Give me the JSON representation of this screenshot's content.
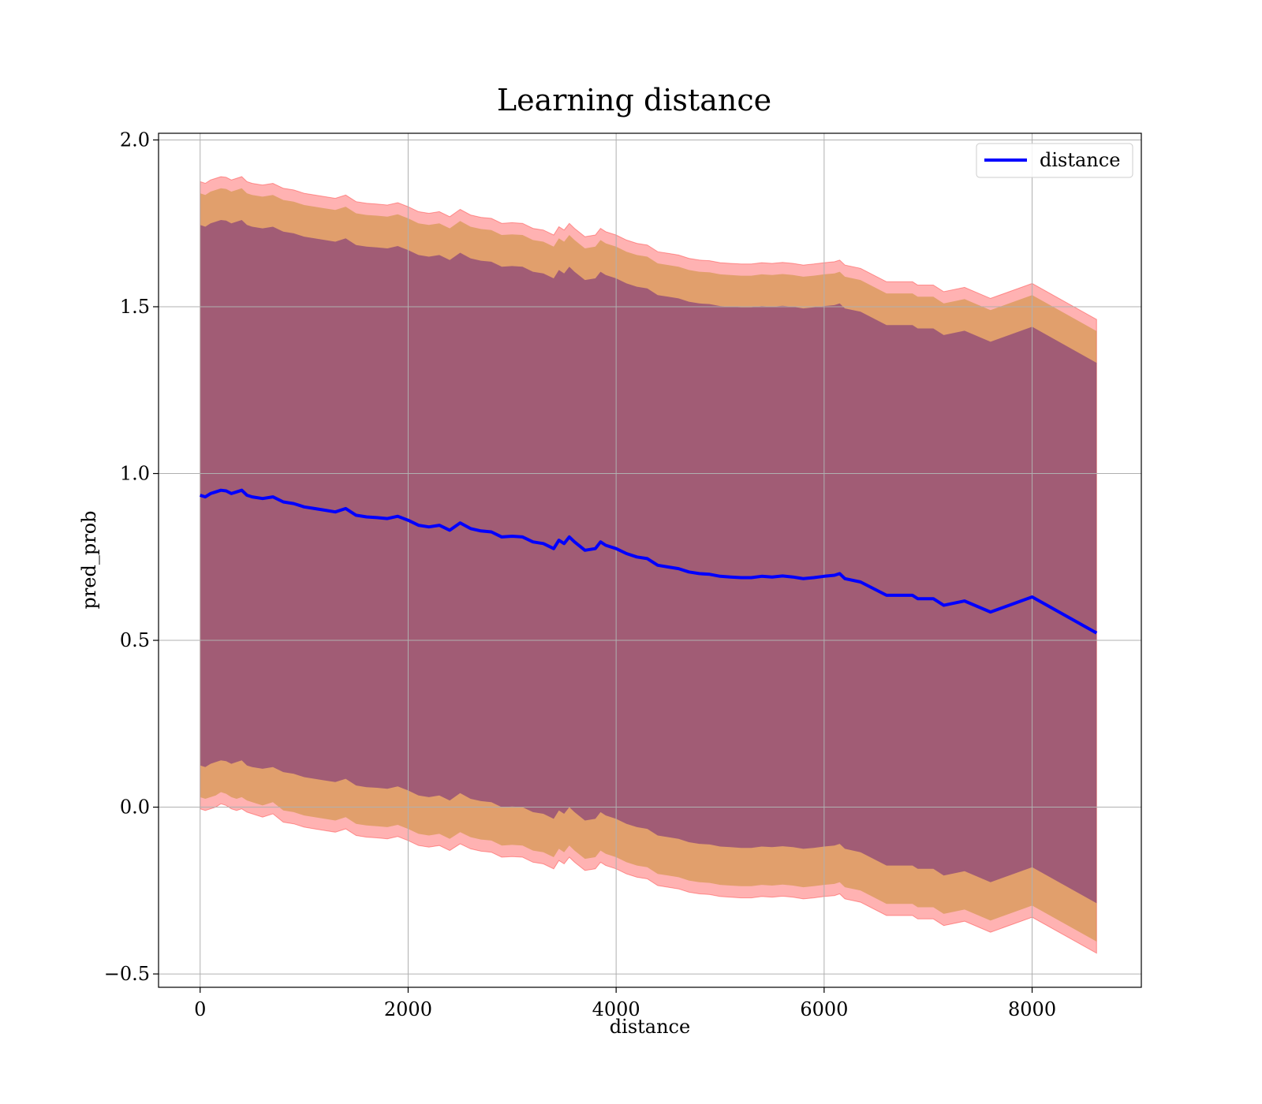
{
  "chart_data": {
    "type": "area",
    "title": "Learning distance",
    "xlabel": "distance",
    "ylabel": "pred_prob",
    "xlim": [
      -400,
      9050
    ],
    "ylim": [
      -0.54,
      2.02
    ],
    "xticks": [
      0,
      2000,
      4000,
      6000,
      8000
    ],
    "yticks": [
      -0.5,
      0.0,
      0.5,
      1.0,
      1.5,
      2.0
    ],
    "xtick_labels": [
      "0",
      "2000",
      "4000",
      "6000",
      "8000"
    ],
    "ytick_labels": [
      "−0.5",
      "0.0",
      "0.5",
      "1.0",
      "1.5",
      "2.0"
    ],
    "grid": true,
    "legend": {
      "position": "top-right",
      "entries": [
        "distance"
      ]
    },
    "colors": {
      "line": "#0000ff",
      "band_outer": "#ff0000",
      "band_middle": "#b8860b",
      "band_inner": "#4b0082",
      "grid": "#b0b0b0"
    },
    "series": [
      {
        "name": "distance",
        "x": [
          0,
          50,
          100,
          150,
          200,
          250,
          300,
          350,
          400,
          450,
          500,
          600,
          700,
          800,
          900,
          1000,
          1100,
          1200,
          1300,
          1400,
          1500,
          1600,
          1700,
          1800,
          1900,
          2000,
          2100,
          2200,
          2300,
          2400,
          2500,
          2600,
          2700,
          2800,
          2900,
          3000,
          3100,
          3200,
          3300,
          3400,
          3450,
          3500,
          3550,
          3600,
          3700,
          3800,
          3850,
          3900,
          4000,
          4100,
          4200,
          4300,
          4400,
          4500,
          4600,
          4700,
          4800,
          4900,
          5000,
          5100,
          5200,
          5300,
          5400,
          5500,
          5600,
          5700,
          5800,
          5900,
          6000,
          6100,
          6150,
          6200,
          6350,
          6600,
          6850,
          6900,
          7050,
          7150,
          7350,
          7600,
          8000,
          8620
        ],
        "values": [
          0.935,
          0.93,
          0.94,
          0.945,
          0.95,
          0.948,
          0.94,
          0.945,
          0.95,
          0.935,
          0.93,
          0.925,
          0.93,
          0.915,
          0.91,
          0.9,
          0.895,
          0.89,
          0.885,
          0.895,
          0.875,
          0.87,
          0.868,
          0.865,
          0.872,
          0.86,
          0.845,
          0.84,
          0.845,
          0.83,
          0.852,
          0.835,
          0.828,
          0.825,
          0.81,
          0.812,
          0.81,
          0.795,
          0.79,
          0.775,
          0.8,
          0.79,
          0.81,
          0.795,
          0.77,
          0.775,
          0.795,
          0.785,
          0.775,
          0.76,
          0.75,
          0.745,
          0.725,
          0.72,
          0.715,
          0.705,
          0.7,
          0.698,
          0.692,
          0.69,
          0.688,
          0.688,
          0.692,
          0.69,
          0.693,
          0.69,
          0.685,
          0.688,
          0.692,
          0.695,
          0.7,
          0.685,
          0.675,
          0.635,
          0.635,
          0.625,
          0.625,
          0.605,
          0.618,
          0.585,
          0.63,
          0.522
        ],
        "lower_outer": [
          -0.005,
          -0.01,
          -0.005,
          0.0,
          0.01,
          0.005,
          -0.005,
          -0.01,
          -0.005,
          -0.015,
          -0.02,
          -0.03,
          -0.02,
          -0.045,
          -0.05,
          -0.06,
          -0.065,
          -0.07,
          -0.075,
          -0.065,
          -0.085,
          -0.09,
          -0.092,
          -0.095,
          -0.088,
          -0.1,
          -0.115,
          -0.12,
          -0.115,
          -0.13,
          -0.11,
          -0.125,
          -0.132,
          -0.135,
          -0.15,
          -0.148,
          -0.15,
          -0.165,
          -0.17,
          -0.185,
          -0.16,
          -0.17,
          -0.15,
          -0.165,
          -0.19,
          -0.185,
          -0.165,
          -0.175,
          -0.185,
          -0.2,
          -0.21,
          -0.215,
          -0.235,
          -0.24,
          -0.245,
          -0.255,
          -0.26,
          -0.262,
          -0.268,
          -0.27,
          -0.272,
          -0.272,
          -0.268,
          -0.27,
          -0.267,
          -0.27,
          -0.275,
          -0.272,
          -0.268,
          -0.265,
          -0.26,
          -0.275,
          -0.285,
          -0.325,
          -0.325,
          -0.335,
          -0.335,
          -0.355,
          -0.342,
          -0.375,
          -0.33,
          -0.438
        ],
        "upper_outer": [
          1.875,
          1.87,
          1.88,
          1.885,
          1.89,
          1.888,
          1.88,
          1.885,
          1.89,
          1.875,
          1.87,
          1.865,
          1.87,
          1.855,
          1.85,
          1.84,
          1.835,
          1.83,
          1.825,
          1.835,
          1.815,
          1.81,
          1.808,
          1.805,
          1.812,
          1.8,
          1.785,
          1.78,
          1.785,
          1.77,
          1.792,
          1.775,
          1.768,
          1.765,
          1.75,
          1.752,
          1.75,
          1.735,
          1.73,
          1.715,
          1.74,
          1.73,
          1.75,
          1.735,
          1.71,
          1.715,
          1.735,
          1.725,
          1.715,
          1.7,
          1.69,
          1.685,
          1.665,
          1.66,
          1.655,
          1.645,
          1.64,
          1.638,
          1.632,
          1.63,
          1.628,
          1.628,
          1.632,
          1.63,
          1.633,
          1.63,
          1.625,
          1.628,
          1.632,
          1.635,
          1.64,
          1.625,
          1.615,
          1.575,
          1.575,
          1.565,
          1.565,
          1.545,
          1.558,
          1.525,
          1.57,
          1.462
        ],
        "lower_middle": [
          0.03,
          0.025,
          0.03,
          0.035,
          0.045,
          0.04,
          0.03,
          0.025,
          0.03,
          0.02,
          0.015,
          0.005,
          0.015,
          -0.01,
          -0.015,
          -0.025,
          -0.03,
          -0.035,
          -0.04,
          -0.03,
          -0.05,
          -0.055,
          -0.057,
          -0.06,
          -0.053,
          -0.065,
          -0.08,
          -0.085,
          -0.08,
          -0.095,
          -0.075,
          -0.09,
          -0.097,
          -0.1,
          -0.115,
          -0.113,
          -0.115,
          -0.13,
          -0.135,
          -0.15,
          -0.125,
          -0.135,
          -0.115,
          -0.13,
          -0.155,
          -0.15,
          -0.13,
          -0.14,
          -0.15,
          -0.165,
          -0.175,
          -0.18,
          -0.2,
          -0.205,
          -0.21,
          -0.22,
          -0.225,
          -0.227,
          -0.233,
          -0.235,
          -0.237,
          -0.237,
          -0.233,
          -0.235,
          -0.232,
          -0.235,
          -0.24,
          -0.237,
          -0.233,
          -0.23,
          -0.225,
          -0.24,
          -0.25,
          -0.29,
          -0.29,
          -0.3,
          -0.3,
          -0.32,
          -0.307,
          -0.34,
          -0.295,
          -0.403
        ],
        "upper_middle": [
          1.84,
          1.835,
          1.845,
          1.85,
          1.855,
          1.853,
          1.845,
          1.85,
          1.855,
          1.84,
          1.835,
          1.83,
          1.835,
          1.82,
          1.815,
          1.805,
          1.8,
          1.795,
          1.79,
          1.8,
          1.78,
          1.775,
          1.773,
          1.77,
          1.777,
          1.765,
          1.75,
          1.745,
          1.75,
          1.735,
          1.757,
          1.74,
          1.733,
          1.73,
          1.715,
          1.717,
          1.715,
          1.7,
          1.695,
          1.68,
          1.705,
          1.695,
          1.715,
          1.7,
          1.675,
          1.68,
          1.7,
          1.69,
          1.68,
          1.665,
          1.655,
          1.65,
          1.63,
          1.625,
          1.62,
          1.61,
          1.605,
          1.603,
          1.597,
          1.595,
          1.593,
          1.593,
          1.597,
          1.595,
          1.598,
          1.595,
          1.59,
          1.593,
          1.597,
          1.6,
          1.605,
          1.59,
          1.58,
          1.54,
          1.54,
          1.53,
          1.53,
          1.51,
          1.523,
          1.49,
          1.535,
          1.427
        ],
        "lower_inner": [
          0.125,
          0.12,
          0.13,
          0.135,
          0.14,
          0.138,
          0.13,
          0.135,
          0.14,
          0.125,
          0.12,
          0.115,
          0.12,
          0.105,
          0.1,
          0.09,
          0.085,
          0.08,
          0.075,
          0.085,
          0.065,
          0.06,
          0.058,
          0.055,
          0.062,
          0.05,
          0.035,
          0.03,
          0.035,
          0.02,
          0.042,
          0.025,
          0.018,
          0.015,
          0.0,
          0.002,
          0.0,
          -0.015,
          -0.02,
          -0.035,
          -0.01,
          -0.02,
          0.0,
          -0.015,
          -0.04,
          -0.035,
          -0.015,
          -0.025,
          -0.035,
          -0.05,
          -0.06,
          -0.065,
          -0.085,
          -0.09,
          -0.095,
          -0.105,
          -0.11,
          -0.112,
          -0.118,
          -0.12,
          -0.122,
          -0.122,
          -0.118,
          -0.12,
          -0.117,
          -0.12,
          -0.125,
          -0.122,
          -0.118,
          -0.115,
          -0.11,
          -0.125,
          -0.135,
          -0.175,
          -0.175,
          -0.185,
          -0.185,
          -0.205,
          -0.192,
          -0.225,
          -0.18,
          -0.288
        ],
        "upper_inner": [
          1.745,
          1.74,
          1.75,
          1.755,
          1.76,
          1.758,
          1.75,
          1.755,
          1.76,
          1.745,
          1.74,
          1.735,
          1.74,
          1.725,
          1.72,
          1.71,
          1.705,
          1.7,
          1.695,
          1.705,
          1.685,
          1.68,
          1.678,
          1.675,
          1.682,
          1.67,
          1.655,
          1.65,
          1.655,
          1.64,
          1.662,
          1.645,
          1.638,
          1.635,
          1.62,
          1.622,
          1.62,
          1.605,
          1.6,
          1.585,
          1.61,
          1.6,
          1.62,
          1.605,
          1.58,
          1.585,
          1.605,
          1.595,
          1.585,
          1.57,
          1.56,
          1.555,
          1.535,
          1.53,
          1.525,
          1.515,
          1.51,
          1.508,
          1.502,
          1.5,
          1.498,
          1.498,
          1.502,
          1.5,
          1.503,
          1.5,
          1.495,
          1.498,
          1.502,
          1.505,
          1.51,
          1.495,
          1.485,
          1.445,
          1.445,
          1.435,
          1.435,
          1.415,
          1.428,
          1.395,
          1.44,
          1.332
        ]
      }
    ]
  }
}
